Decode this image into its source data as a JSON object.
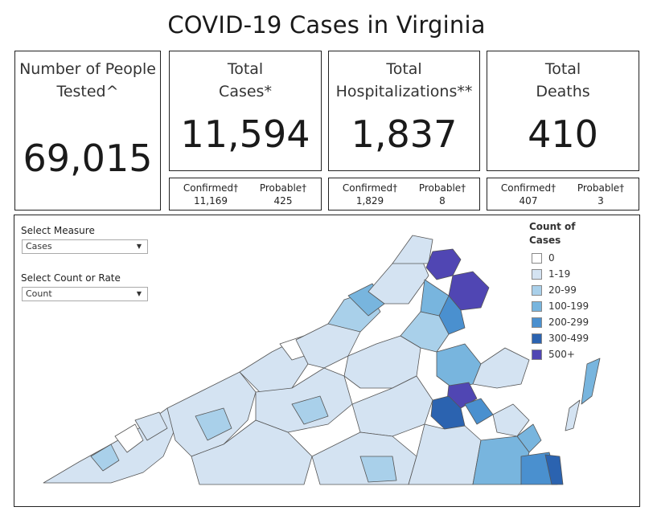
{
  "title": "COVID-19 Cases in Virginia",
  "cards": {
    "tested": {
      "label_line1": "Number of People",
      "label_line2": "Tested^",
      "value": "69,015"
    },
    "cases": {
      "label_line1": "Total",
      "label_line2": "Cases*",
      "value": "11,594",
      "confirmed_label": "Confirmed†",
      "confirmed_value": "11,169",
      "probable_label": "Probable†",
      "probable_value": "425"
    },
    "hospitalizations": {
      "label_line1": "Total",
      "label_line2": "Hospitalizations**",
      "value": "1,837",
      "confirmed_label": "Confirmed†",
      "confirmed_value": "1,829",
      "probable_label": "Probable†",
      "probable_value": "8"
    },
    "deaths": {
      "label_line1": "Total",
      "label_line2": "Deaths",
      "value": "410",
      "confirmed_label": "Confirmed†",
      "confirmed_value": "407",
      "probable_label": "Probable†",
      "probable_value": "3"
    }
  },
  "controls": {
    "measure_label": "Select Measure",
    "measure_value": "Cases",
    "rate_label": "Select Count or Rate",
    "rate_value": "Count"
  },
  "legend": {
    "title_line1": "Count of",
    "title_line2": "Cases",
    "items": [
      {
        "label": "0",
        "color": "#ffffff"
      },
      {
        "label": "1-19",
        "color": "#d4e3f2"
      },
      {
        "label": "20-99",
        "color": "#a9d0ea"
      },
      {
        "label": "100-199",
        "color": "#78b5de"
      },
      {
        "label": "200-299",
        "color": "#4a90cf"
      },
      {
        "label": "300-499",
        "color": "#2b63b0"
      },
      {
        "label": "500+",
        "color": "#5046b3"
      }
    ]
  },
  "map": {
    "region": "Virginia localities choropleth"
  }
}
